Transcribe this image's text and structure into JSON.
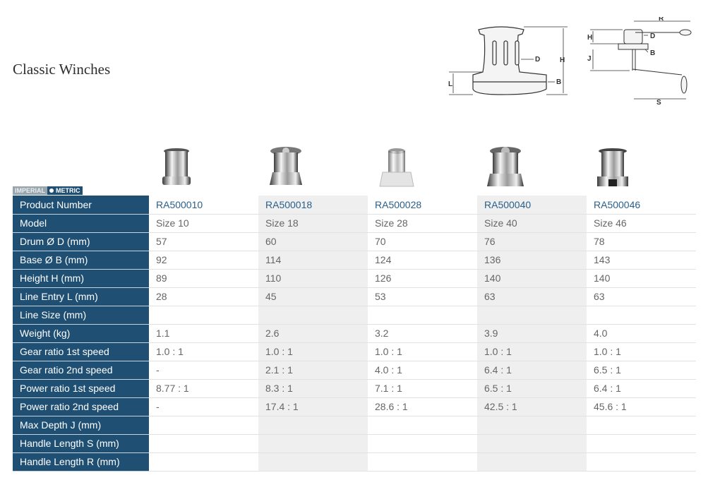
{
  "page": {
    "title": "Classic Winches"
  },
  "diagram_labels": {
    "winch": [
      "D",
      "H",
      "L",
      "B"
    ],
    "handle": [
      "R",
      "H",
      "D",
      "B",
      "J",
      "S"
    ]
  },
  "unit_toggle": {
    "imperial": "IMPERIAL",
    "metric": "METRIC",
    "selected": "METRIC"
  },
  "products": [
    {
      "icon": "winch-size-10-photo"
    },
    {
      "icon": "winch-size-18-photo"
    },
    {
      "icon": "winch-size-28-photo"
    },
    {
      "icon": "winch-size-40-photo"
    },
    {
      "icon": "winch-size-46-photo"
    }
  ],
  "table": {
    "rows": [
      {
        "label": "Product Number",
        "values": [
          "RA500010",
          "RA500018",
          "RA500028",
          "RA500040",
          "RA500046"
        ]
      },
      {
        "label": "Model",
        "values": [
          "Size 10",
          "Size 18",
          "Size 28",
          "Size 40",
          "Size 46"
        ]
      },
      {
        "label": "Drum Ø D  (mm)",
        "values": [
          "57",
          "60",
          "70",
          "76",
          "78"
        ]
      },
      {
        "label": "Base Ø B  (mm)",
        "values": [
          "92",
          "114",
          "124",
          "136",
          "143"
        ]
      },
      {
        "label": "Height H  (mm)",
        "values": [
          "89",
          "110",
          "126",
          "140",
          "140"
        ]
      },
      {
        "label": "Line Entry L  (mm)",
        "values": [
          "28",
          "45",
          "53",
          "63",
          "63"
        ]
      },
      {
        "label": "Line Size  (mm)",
        "values": [
          "",
          "",
          "",
          "",
          ""
        ]
      },
      {
        "label": "Weight  (kg)",
        "values": [
          "1.1",
          "2.6",
          "3.2",
          "3.9",
          "4.0"
        ]
      },
      {
        "label": "Gear ratio 1st speed",
        "values": [
          "1.0 : 1",
          "1.0 : 1",
          "1.0 : 1",
          "1.0 : 1",
          "1.0 : 1"
        ]
      },
      {
        "label": "Gear ratio 2nd speed",
        "values": [
          "-",
          "2.1 : 1",
          "4.0 : 1",
          "6.4 : 1",
          "6.5 : 1"
        ]
      },
      {
        "label": "Power ratio 1st speed",
        "values": [
          "8.77 : 1",
          "8.3 : 1",
          "7.1 : 1",
          "6.5 : 1",
          "6.4 : 1"
        ]
      },
      {
        "label": "Power ratio 2nd speed",
        "values": [
          "-",
          "17.4 : 1",
          "28.6 : 1",
          "42.5 : 1",
          "45.6 : 1"
        ]
      },
      {
        "label": "Max Depth J  (mm)",
        "values": [
          "",
          "",
          "",
          "",
          ""
        ]
      },
      {
        "label": "Handle Length S  (mm)",
        "values": [
          "",
          "",
          "",
          "",
          ""
        ]
      },
      {
        "label": "Handle Length R  (mm)",
        "values": [
          "",
          "",
          "",
          "",
          ""
        ]
      }
    ]
  },
  "colors": {
    "header_bg": "#1f4f73",
    "shaded_col": "#efefef",
    "product_number_text": "#2a5f8a",
    "value_text": "#666666"
  }
}
